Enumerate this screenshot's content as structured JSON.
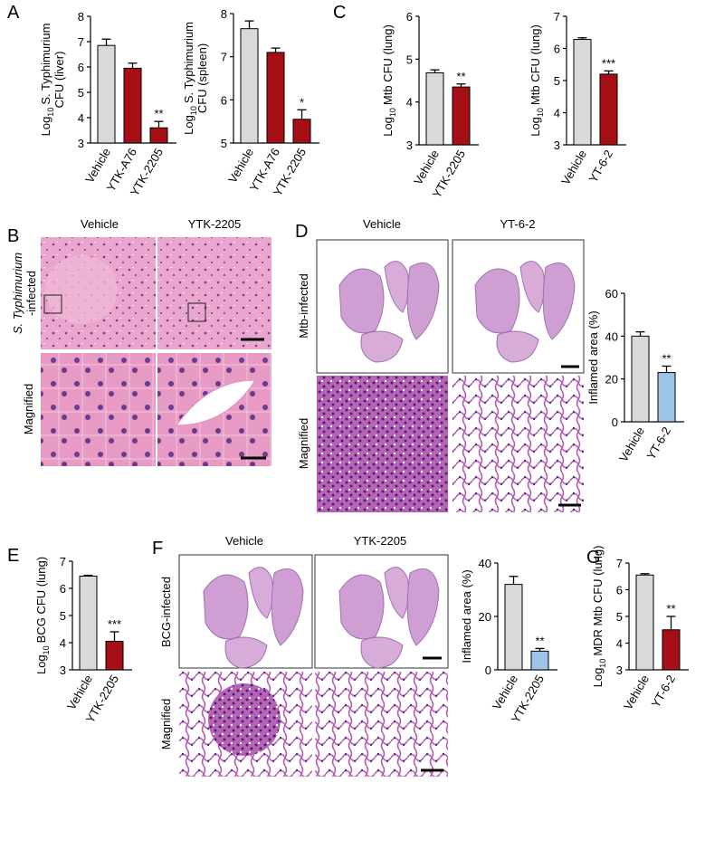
{
  "panels": [
    "A",
    "B",
    "C",
    "D",
    "E",
    "F",
    "G"
  ],
  "histology": {
    "B": {
      "columns": [
        "Vehicle",
        "YTK-2205"
      ],
      "rows": [
        [
          "S. Typhimurium",
          "-infected"
        ],
        [
          "Magnified"
        ]
      ]
    },
    "D": {
      "columns": [
        "Vehicle",
        "YT-6-2"
      ],
      "rows": [
        [
          "Mtb-infected"
        ],
        [
          "Magnified"
        ]
      ]
    },
    "F": {
      "columns": [
        "Vehicle",
        "YTK-2205"
      ],
      "rows": [
        [
          "BCG-infected"
        ],
        [
          "Magnified"
        ]
      ]
    }
  },
  "chart_data": [
    {
      "type": "bar",
      "ylabel": {
        "base": "Log",
        "sub": "10",
        "text": [
          "S. Typhimurium",
          "CFU (liver)"
        ]
      },
      "categories": [
        "Vehicle",
        "YTK-A76",
        "YTK-2205"
      ],
      "values": [
        6.85,
        5.95,
        3.6
      ],
      "errors": [
        0.25,
        0.2,
        0.25
      ],
      "colors": [
        "#d9d9d9",
        "#a50f15",
        "#a50f15"
      ],
      "annotations": [
        {
          "category": "YTK-2205",
          "text": "**"
        }
      ],
      "ylim": [
        3,
        8
      ],
      "yticks": [
        3,
        4,
        5,
        6,
        7,
        8
      ]
    },
    {
      "type": "bar",
      "ylabel": {
        "base": "Log",
        "sub": "10",
        "text": [
          "S. Typhimurium",
          "CFU (spleen)"
        ]
      },
      "categories": [
        "Vehicle",
        "YTK-A76",
        "YTK-2205"
      ],
      "values": [
        7.65,
        7.1,
        5.55
      ],
      "errors": [
        0.18,
        0.1,
        0.22
      ],
      "colors": [
        "#d9d9d9",
        "#a50f15",
        "#a50f15"
      ],
      "annotations": [
        {
          "category": "YTK-2205",
          "text": "*"
        }
      ],
      "ylim": [
        5,
        8
      ],
      "yticks": [
        5,
        6,
        7,
        8
      ]
    },
    {
      "type": "bar",
      "ylabel": {
        "base": "Log",
        "sub": "10",
        "text": [
          "Mtb CFU (lung)"
        ]
      },
      "categories": [
        "Vehicle",
        "YTK-2205"
      ],
      "values": [
        4.68,
        4.35
      ],
      "errors": [
        0.07,
        0.07
      ],
      "colors": [
        "#d9d9d9",
        "#a50f15"
      ],
      "annotations": [
        {
          "category": "YTK-2205",
          "text": "**"
        }
      ],
      "ylim": [
        3,
        6
      ],
      "yticks": [
        3,
        4,
        5,
        6
      ]
    },
    {
      "type": "bar",
      "ylabel": {
        "base": "Log",
        "sub": "10",
        "text": [
          "Mtb CFU (lung)"
        ]
      },
      "categories": [
        "Vehicle",
        "YT-6-2"
      ],
      "values": [
        6.28,
        5.2
      ],
      "errors": [
        0.05,
        0.1
      ],
      "colors": [
        "#d9d9d9",
        "#a50f15"
      ],
      "annotations": [
        {
          "category": "YT-6-2",
          "text": "***"
        }
      ],
      "ylim": [
        3,
        7
      ],
      "yticks": [
        3,
        4,
        5,
        6,
        7
      ]
    },
    {
      "type": "bar",
      "ylabel": {
        "text": [
          "Inflamed area (%)"
        ]
      },
      "categories": [
        "Vehicle",
        "YT-6-2"
      ],
      "values": [
        40,
        23
      ],
      "errors": [
        2,
        3
      ],
      "colors": [
        "#d9d9d9",
        "#9dc3e6"
      ],
      "annotations": [
        {
          "category": "YT-6-2",
          "text": "**"
        }
      ],
      "ylim": [
        0,
        60
      ],
      "yticks": [
        0,
        20,
        40,
        60
      ]
    },
    {
      "type": "bar",
      "ylabel": {
        "base": "Log",
        "sub": "10",
        "text": [
          "BCG CFU (lung)"
        ]
      },
      "categories": [
        "Vehicle",
        "YTK-2205"
      ],
      "values": [
        6.45,
        4.05
      ],
      "errors": [
        0.03,
        0.35
      ],
      "colors": [
        "#d9d9d9",
        "#a50f15"
      ],
      "annotations": [
        {
          "category": "YTK-2205",
          "text": "***"
        }
      ],
      "ylim": [
        3,
        7
      ],
      "yticks": [
        3,
        4,
        5,
        6,
        7
      ]
    },
    {
      "type": "bar",
      "ylabel": {
        "text": [
          "Inflamed area (%)"
        ]
      },
      "categories": [
        "Vehicle",
        "YTK-2205"
      ],
      "values": [
        32,
        7
      ],
      "errors": [
        3,
        1
      ],
      "colors": [
        "#d9d9d9",
        "#9dc3e6"
      ],
      "annotations": [
        {
          "category": "YTK-2205",
          "text": "**"
        }
      ],
      "ylim": [
        0,
        40
      ],
      "yticks": [
        0,
        20,
        40
      ]
    },
    {
      "type": "bar",
      "ylabel": {
        "base": "Log",
        "sub": "10",
        "text": [
          "MDR Mtb CFU (lung)"
        ]
      },
      "categories": [
        "Vehicle",
        "YT-6-2"
      ],
      "values": [
        6.55,
        4.5
      ],
      "errors": [
        0.05,
        0.5
      ],
      "colors": [
        "#d9d9d9",
        "#a50f15"
      ],
      "annotations": [
        {
          "category": "YT-6-2",
          "text": "**"
        }
      ],
      "ylim": [
        3,
        7
      ],
      "yticks": [
        3,
        4,
        5,
        6,
        7
      ]
    }
  ]
}
